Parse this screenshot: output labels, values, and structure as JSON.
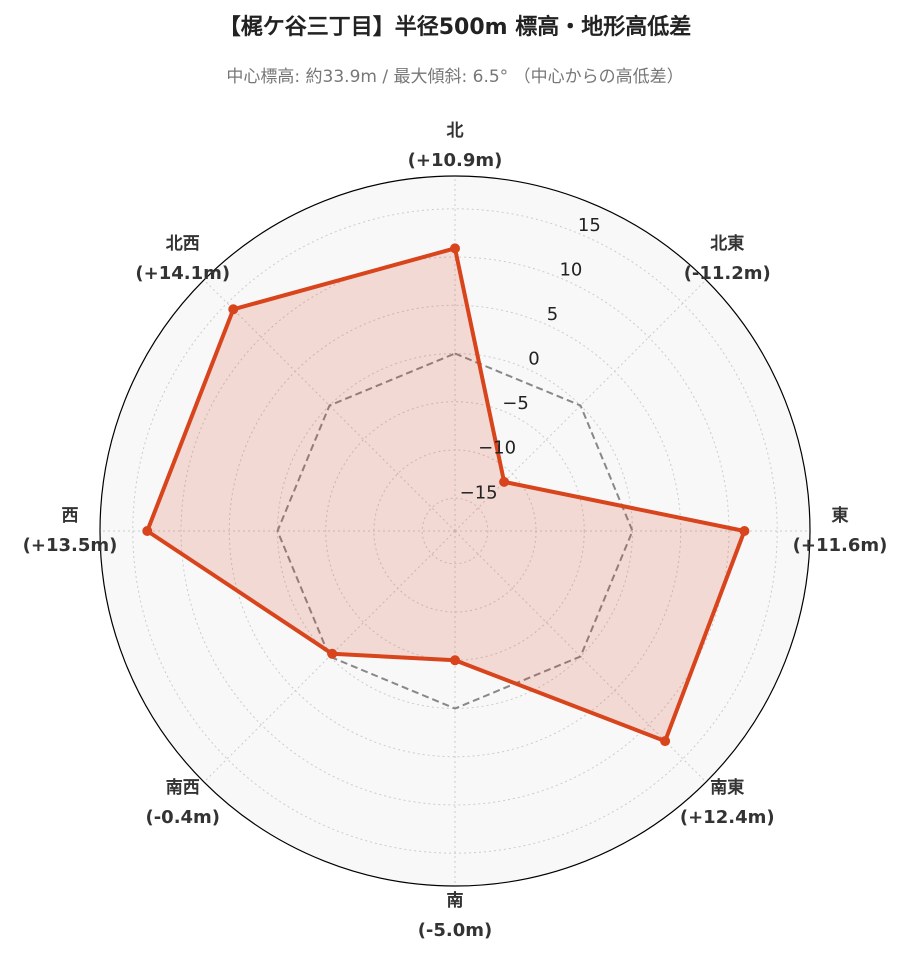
{
  "chart_data": {
    "type": "radar",
    "title": "【梶ケ谷三丁目】半径500m 標高・地形高低差",
    "subtitle": "中心標高: 約33.9m / 最大傾斜: 6.5° （中心からの高低差）",
    "categories": [
      "北",
      "北東",
      "東",
      "南東",
      "南",
      "南西",
      "西",
      "北西"
    ],
    "values": [
      10.9,
      -11.2,
      11.6,
      12.4,
      -5.0,
      -0.4,
      13.5,
      14.1
    ],
    "value_labels": [
      "(+10.9m)",
      "(-11.2m)",
      "(+11.6m)",
      "(+12.4m)",
      "(-5.0m)",
      "(-0.4m)",
      "(+13.5m)",
      "(+14.1m)"
    ],
    "color": "#d8441c",
    "reference_line": 0,
    "rlim": [
      -18.4,
      18.4
    ],
    "rticks": [
      {
        "value": -15,
        "label": "−15"
      },
      {
        "value": -10,
        "label": "−10"
      },
      {
        "value": -5,
        "label": "−5"
      },
      0,
      5,
      10,
      15
    ],
    "grid": true
  }
}
